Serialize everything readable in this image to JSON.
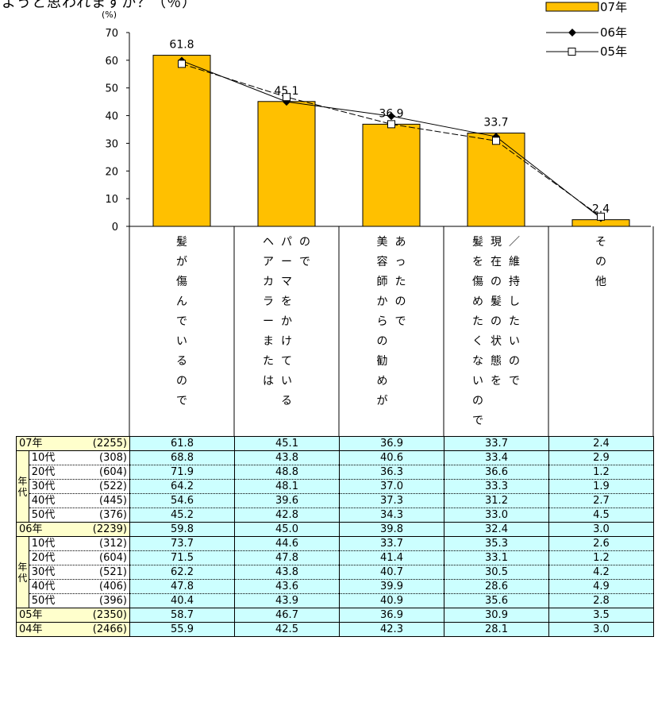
{
  "header": {
    "title_fragment": "ようと思われますか？（％）"
  },
  "chart_data": {
    "type": "bar",
    "unit_label": "(%)",
    "yticks": [
      "70",
      "60",
      "50",
      "40",
      "30",
      "20",
      "10",
      "0"
    ],
    "ylim": [
      0,
      70
    ],
    "categories": [
      "髪が傷んでいるので",
      "パーマをかけているのでヘアカラーまたは",
      "美容師からの勧めがあったので",
      "髪を傷めたくないので／現在の髪の状態を維持したいので",
      "その他"
    ],
    "category_columns": [
      [
        "髪が傷んでいるので"
      ],
      [
        "ヘアカラーまたは",
        "パーマをかけている",
        "ので"
      ],
      [
        "美容師からの勧めが",
        "あったので"
      ],
      [
        "髪を傷めたくないので",
        "現在の髪の状態を",
        "／維持したいので"
      ],
      [
        "その他"
      ]
    ],
    "series": [
      {
        "name": "07年",
        "kind": "bar",
        "values": [
          61.8,
          45.1,
          36.9,
          33.7,
          2.4
        ],
        "labels": [
          "61.8",
          "45.1",
          "36.9",
          "33.7",
          "2.4"
        ]
      },
      {
        "name": "06年",
        "kind": "line",
        "marker": "filled-diamond",
        "values": [
          59.8,
          45.0,
          39.8,
          32.4,
          3.0
        ]
      },
      {
        "name": "05年",
        "kind": "line",
        "marker": "open-square",
        "values": [
          58.7,
          46.7,
          36.9,
          30.9,
          3.5
        ]
      }
    ],
    "colors": {
      "bar": "#ffc000",
      "bar_edge": "#000000",
      "line": "#000000"
    },
    "legend_position": "top-right"
  },
  "table": {
    "rows": [
      {
        "type": "group",
        "label": "07年",
        "n": "(2255)",
        "values": [
          "61.8",
          "45.1",
          "36.9",
          "33.7",
          "2.4"
        ]
      },
      {
        "type": "sub",
        "block": 1,
        "label": "10代",
        "n": "(308)",
        "values": [
          "68.8",
          "43.8",
          "40.6",
          "33.4",
          "2.9"
        ]
      },
      {
        "type": "sub",
        "block": 1,
        "label": "20代",
        "n": "(604)",
        "values": [
          "71.9",
          "48.8",
          "36.3",
          "36.6",
          "1.2"
        ]
      },
      {
        "type": "sub",
        "block": 1,
        "label": "30代",
        "n": "(522)",
        "values": [
          "64.2",
          "48.1",
          "37.0",
          "33.3",
          "1.9"
        ]
      },
      {
        "type": "sub",
        "block": 1,
        "label": "40代",
        "n": "(445)",
        "values": [
          "54.6",
          "39.6",
          "37.3",
          "31.2",
          "2.7"
        ]
      },
      {
        "type": "sub",
        "block": 1,
        "label": "50代",
        "n": "(376)",
        "values": [
          "45.2",
          "42.8",
          "34.3",
          "33.0",
          "4.5"
        ]
      },
      {
        "type": "group",
        "label": "06年",
        "n": "(2239)",
        "values": [
          "59.8",
          "45.0",
          "39.8",
          "32.4",
          "3.0"
        ]
      },
      {
        "type": "sub",
        "block": 2,
        "label": "10代",
        "n": "(312)",
        "values": [
          "73.7",
          "44.6",
          "33.7",
          "35.3",
          "2.6"
        ]
      },
      {
        "type": "sub",
        "block": 2,
        "label": "20代",
        "n": "(604)",
        "values": [
          "71.5",
          "47.8",
          "41.4",
          "33.1",
          "1.2"
        ]
      },
      {
        "type": "sub",
        "block": 2,
        "label": "30代",
        "n": "(521)",
        "values": [
          "62.2",
          "43.8",
          "40.7",
          "30.5",
          "4.2"
        ]
      },
      {
        "type": "sub",
        "block": 2,
        "label": "40代",
        "n": "(406)",
        "values": [
          "47.8",
          "43.6",
          "39.9",
          "28.6",
          "4.9"
        ]
      },
      {
        "type": "sub",
        "block": 2,
        "label": "50代",
        "n": "(396)",
        "values": [
          "40.4",
          "43.9",
          "40.9",
          "35.6",
          "2.8"
        ]
      },
      {
        "type": "group",
        "label": "05年",
        "n": "(2350)",
        "values": [
          "58.7",
          "46.7",
          "36.9",
          "30.9",
          "3.5"
        ]
      },
      {
        "type": "group",
        "label": "04年",
        "n": "(2466)",
        "values": [
          "55.9",
          "42.5",
          "42.3",
          "28.1",
          "3.0"
        ]
      }
    ],
    "side_label": "年代"
  }
}
